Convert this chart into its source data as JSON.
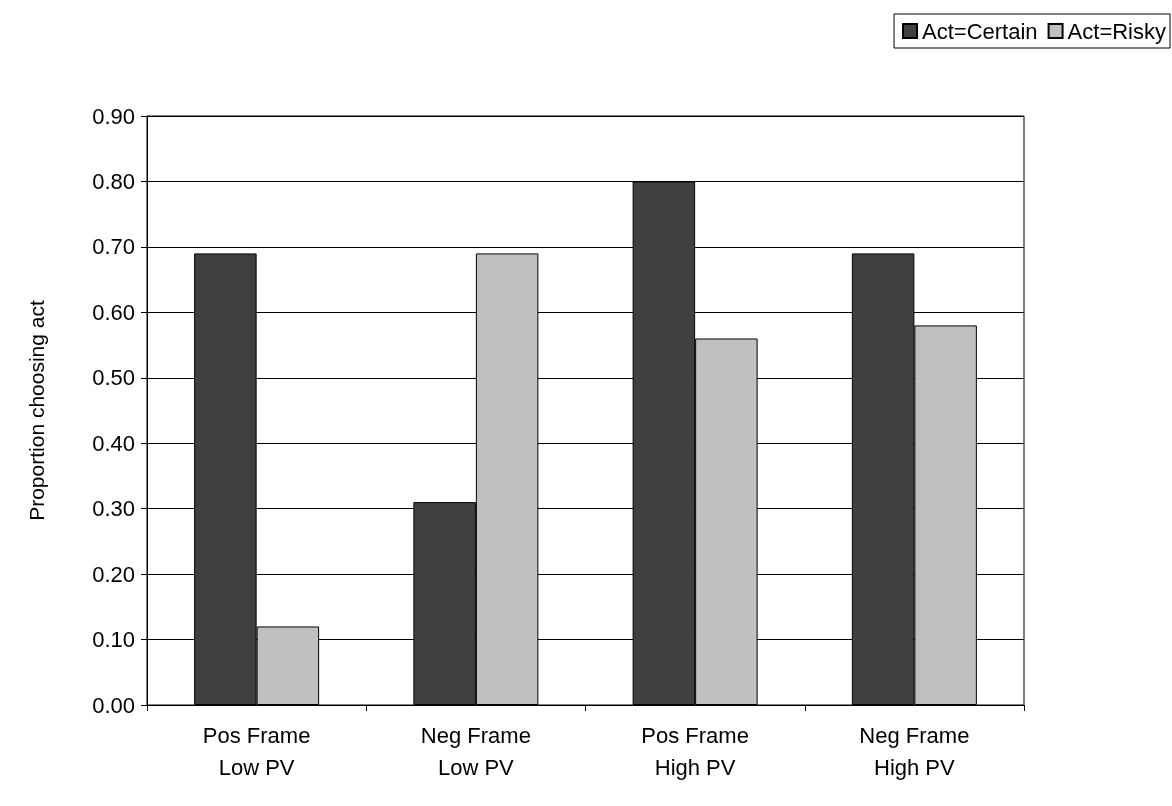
{
  "chart_data": {
    "type": "bar",
    "ylabel": "Proportion choosing act",
    "categories": [
      "Pos Frame\nLow PV",
      "Neg Frame\nLow PV",
      "Pos Frame\nHigh PV",
      "Neg Frame\nHigh PV"
    ],
    "series": [
      {
        "name": "Act=Certain",
        "color": "#404040",
        "values": [
          0.69,
          0.31,
          0.8,
          0.69
        ]
      },
      {
        "name": "Act=Risky",
        "color": "#c0c0c0",
        "values": [
          0.12,
          0.69,
          0.56,
          0.58
        ]
      }
    ],
    "ylim": [
      0,
      0.9
    ],
    "yticks": [
      {
        "value": 0,
        "label": "0.00"
      },
      {
        "value": 0.1,
        "label": "0.10"
      },
      {
        "value": 0.2,
        "label": "0.20"
      },
      {
        "value": 0.3,
        "label": "0.30"
      },
      {
        "value": 0.4,
        "label": "0.40"
      },
      {
        "value": 0.5,
        "label": "0.50"
      },
      {
        "value": 0.6,
        "label": "0.60"
      },
      {
        "value": 0.7,
        "label": "0.70"
      },
      {
        "value": 0.8,
        "label": "0.80"
      },
      {
        "value": 0.9,
        "label": "0.90"
      }
    ],
    "grid": "y",
    "legend": "top right"
  }
}
